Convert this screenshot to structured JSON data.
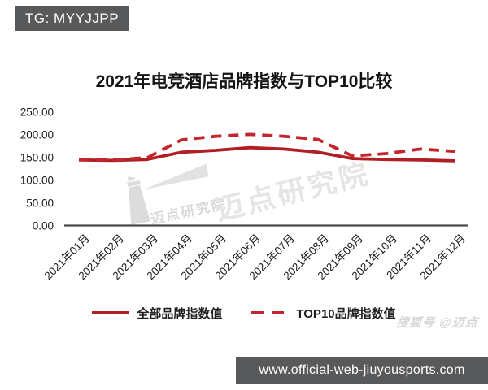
{
  "badge": {
    "text": "TG: MYYJJPP"
  },
  "title": "2021年电竞酒店品牌指数与TOP10比较",
  "chart_data": {
    "type": "line",
    "title": "2021年电竞酒店品牌指数与TOP10比较",
    "categories": [
      "2021年01月",
      "2021年02月",
      "2021年03月",
      "2021年04月",
      "2021年05月",
      "2021年06月",
      "2021年07月",
      "2021年08月",
      "2021年09月",
      "2021年10月",
      "2021年11月",
      "2021年12月"
    ],
    "series": [
      {
        "name": "全部品牌指数值",
        "line_style": "solid",
        "color": "#b01f24",
        "values": [
          145,
          144,
          146,
          162,
          166,
          172,
          169,
          162,
          148,
          146,
          145,
          143
        ]
      },
      {
        "name": "TOP10品牌指数值",
        "line_style": "dashed",
        "color": "#c1272d",
        "values": [
          146,
          145,
          150,
          189,
          197,
          201,
          197,
          190,
          154,
          159,
          169,
          164
        ]
      }
    ],
    "ylim": [
      0,
      250
    ],
    "yticks": [
      {
        "label": "250.00",
        "value": 250
      },
      {
        "label": "200.00",
        "value": 200
      },
      {
        "label": "150.00",
        "value": 150
      },
      {
        "label": "100.00",
        "value": 100
      },
      {
        "label": "50.00",
        "value": 50
      },
      {
        "label": "0.00",
        "value": 0
      }
    ],
    "grid": false,
    "legend_position": "bottom"
  },
  "watermarks": {
    "center_large": "迈点研究院",
    "center_small": "迈点研究院",
    "bottom_right": "搜狐号 @迈点"
  },
  "footer": {
    "url": "www.official-web-jiuyousports.com"
  },
  "colors": {
    "badge_bg": "#58595b",
    "footer_bg": "#58595b",
    "axis": "#4a4a4a",
    "tick_text": "#1a1a1a",
    "watermark": "#dcdcdc"
  }
}
